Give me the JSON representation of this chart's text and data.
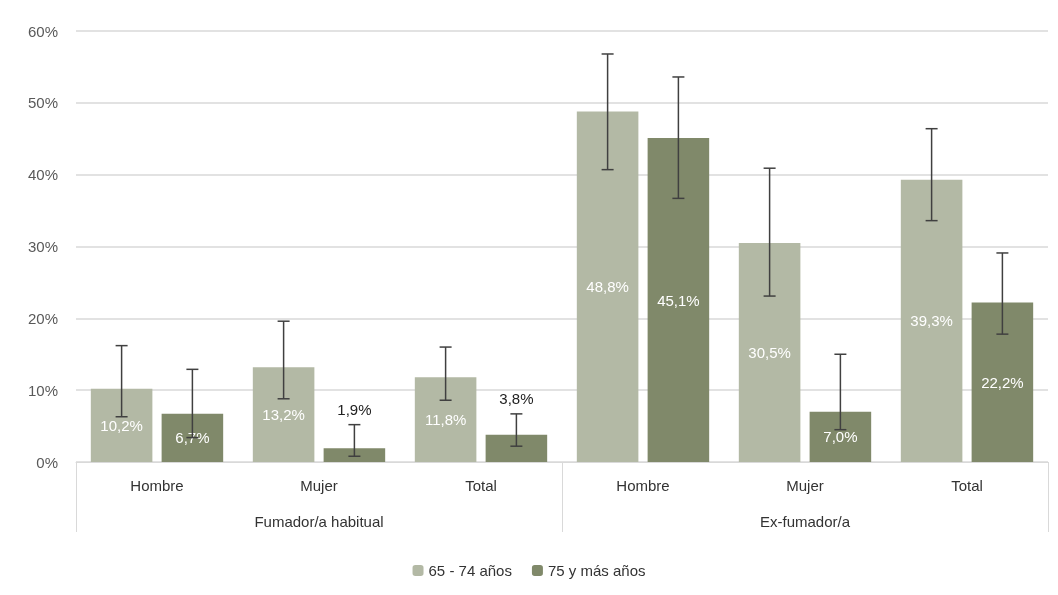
{
  "chart_data": {
    "type": "bar",
    "categories": [
      "Hombre",
      "Mujer",
      "Total",
      "Hombre",
      "Mujer",
      "Total"
    ],
    "annotations": [
      "Fumador/a habitual",
      "Ex-fumador/a"
    ],
    "series": [
      {
        "name": "65 - 74 años",
        "color": "#b3b9a5",
        "values": [
          10.2,
          13.2,
          11.8,
          48.8,
          30.5,
          39.3
        ],
        "value_labels": [
          "10,2%",
          "13,2%",
          "11,8%",
          "48,8%",
          "30,5%",
          "39,3%"
        ],
        "errors": [
          [
            6.3,
            16.2
          ],
          [
            8.8,
            19.6
          ],
          [
            8.6,
            16.0
          ],
          [
            40.7,
            56.8
          ],
          [
            23.1,
            40.9
          ],
          [
            33.6,
            46.4
          ]
        ]
      },
      {
        "name": "75 y más años",
        "color": "#80896a",
        "values": [
          6.7,
          1.9,
          3.8,
          45.1,
          7.0,
          22.2
        ],
        "value_labels": [
          "6,7%",
          "1,9%",
          "3,8%",
          "45,1%",
          "7,0%",
          "22,2%"
        ],
        "errors": [
          [
            3.4,
            12.9
          ],
          [
            0.8,
            5.2
          ],
          [
            2.2,
            6.7
          ],
          [
            36.7,
            53.6
          ],
          [
            4.5,
            15.0
          ],
          [
            17.8,
            29.1
          ]
        ]
      }
    ],
    "ylim": [
      0,
      60
    ],
    "yticks": [
      {
        "value": 0,
        "label": "0%"
      },
      {
        "value": 10,
        "label": "10%"
      },
      {
        "value": 20,
        "label": "20%"
      },
      {
        "value": 30,
        "label": "30%"
      },
      {
        "value": 40,
        "label": "40%"
      },
      {
        "value": 50,
        "label": "50%"
      },
      {
        "value": 60,
        "label": "60%"
      }
    ],
    "grid": "y",
    "legend": "bottom"
  }
}
